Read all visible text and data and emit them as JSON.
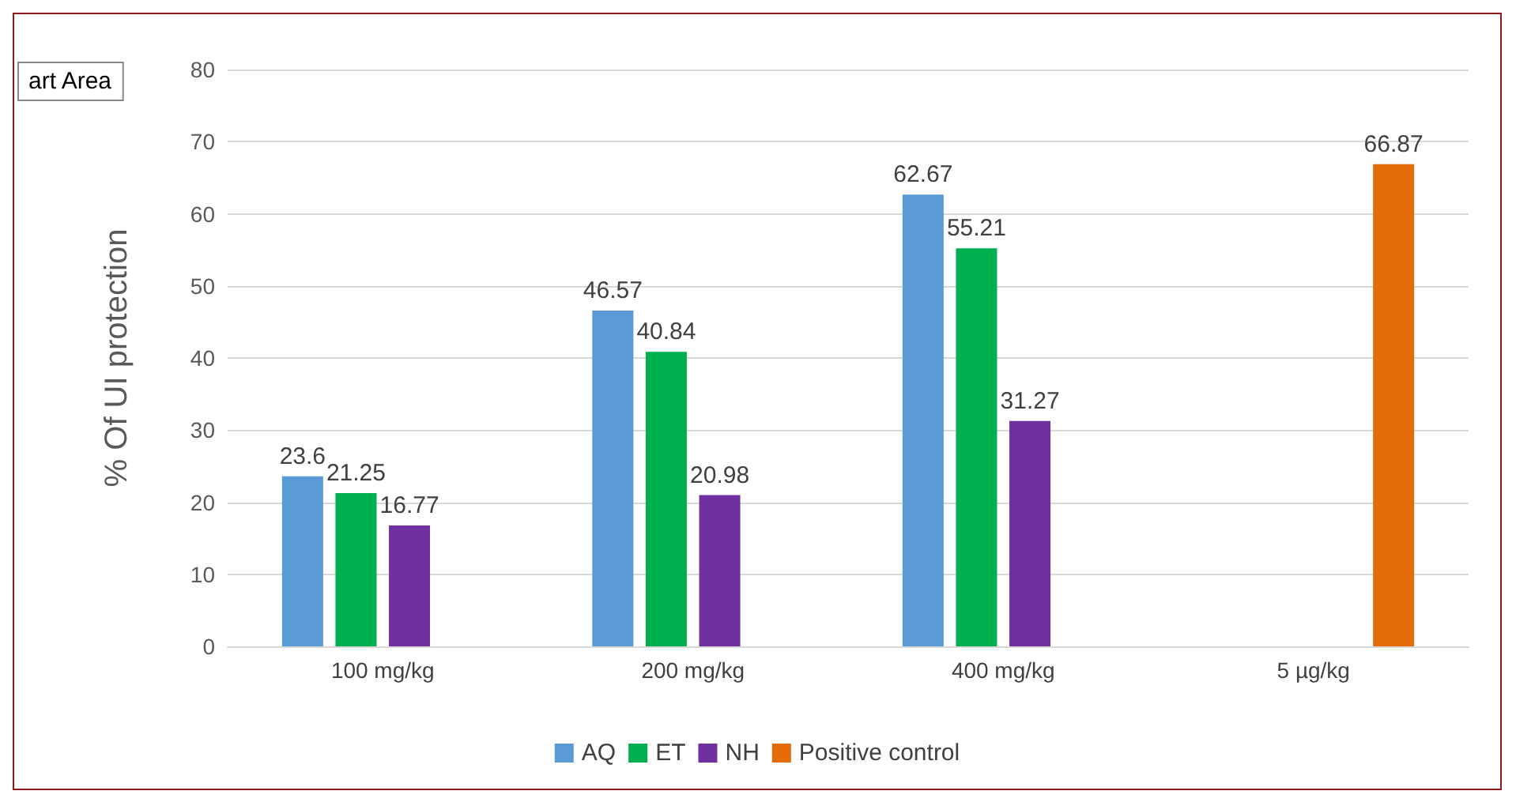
{
  "chart_data": {
    "type": "bar",
    "ylabel": "% Of UI protection",
    "categories": [
      "100 mg/kg",
      "200 mg/kg",
      "400 mg/kg",
      "5 µg/kg"
    ],
    "series": [
      {
        "name": "AQ",
        "color": "#5b9bd5",
        "values": [
          23.6,
          46.57,
          62.67,
          null
        ]
      },
      {
        "name": "ET",
        "color": "#00b050",
        "values": [
          21.25,
          40.84,
          55.21,
          null
        ]
      },
      {
        "name": "NH",
        "color": "#7030a0",
        "values": [
          16.77,
          20.98,
          31.27,
          null
        ]
      },
      {
        "name": "Positive control",
        "color": "#e36c09",
        "values": [
          null,
          null,
          null,
          66.87
        ]
      }
    ],
    "ylim": [
      0,
      80
    ],
    "yticks": [
      0,
      10,
      20,
      30,
      40,
      50,
      60,
      70,
      80
    ],
    "grid": "y",
    "legend": "bottom",
    "data_labels": true,
    "annotations": [
      "art Area"
    ]
  }
}
